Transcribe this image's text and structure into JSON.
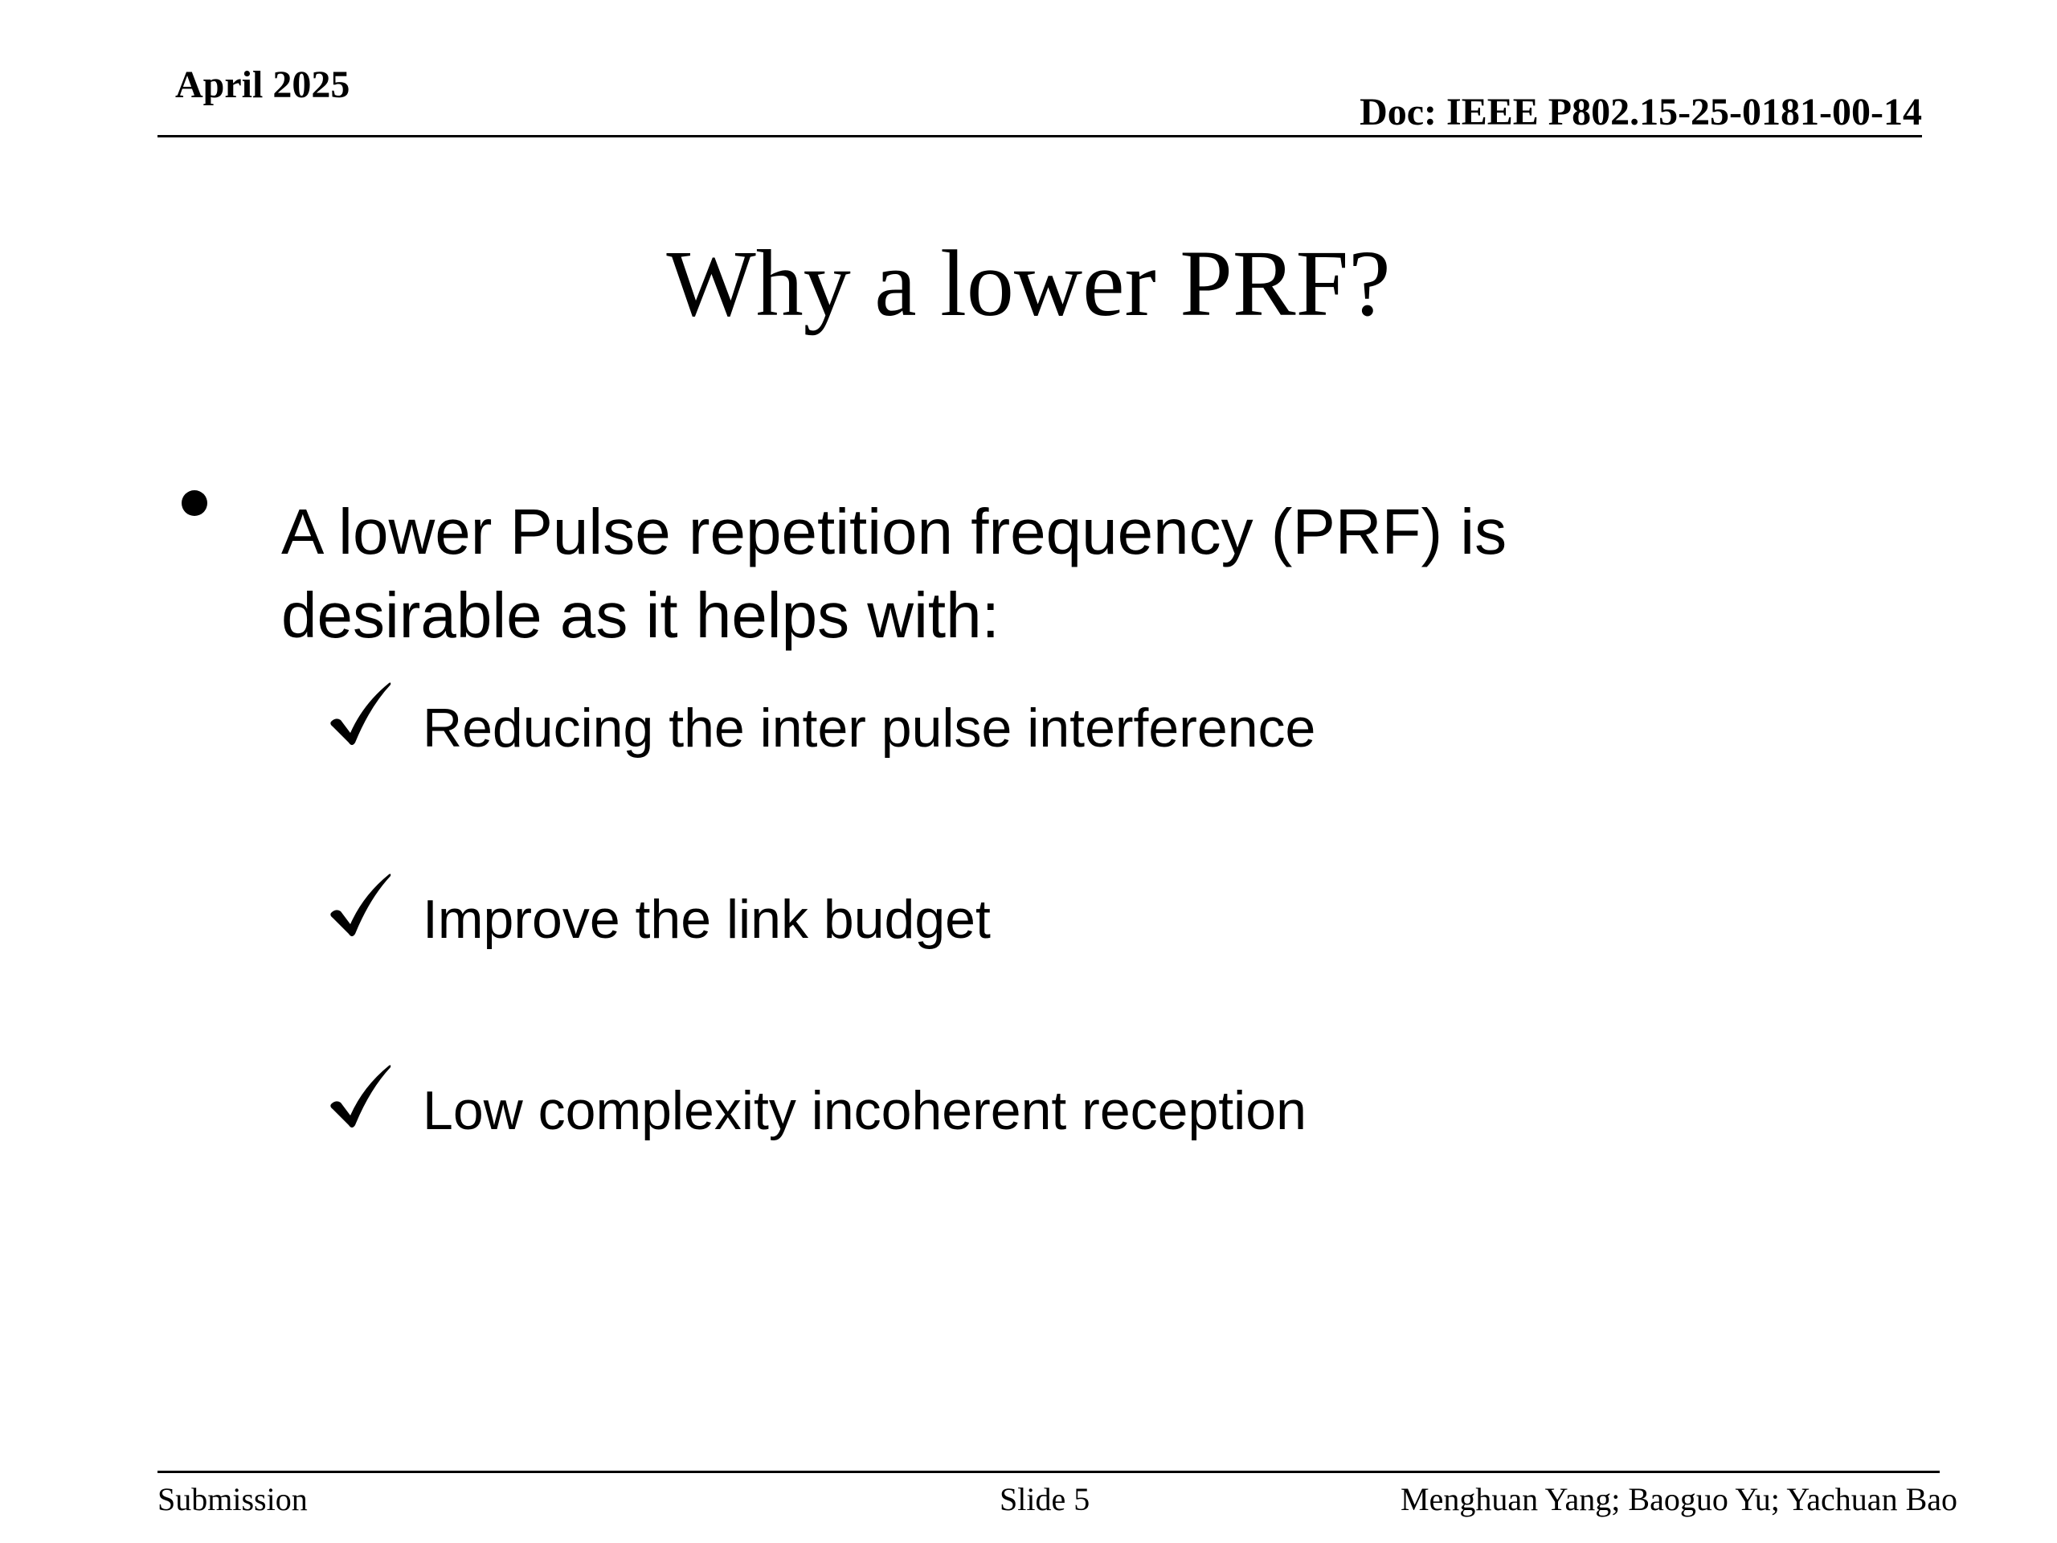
{
  "header": {
    "date": "April 2025",
    "doc_id": "Doc: IEEE P802.15-25-0181-00-14"
  },
  "slide": {
    "title": "Why a lower PRF?",
    "bullet": {
      "line1": "A lower Pulse repetition frequency (PRF) is",
      "line2": "desirable as it helps with:"
    },
    "checks": [
      {
        "text": "Reducing the inter pulse interference",
        "icon": "checkmark-icon"
      },
      {
        "text": "Improve the link budget",
        "icon": "checkmark-icon"
      },
      {
        "text": "Low complexity incoherent reception",
        "icon": "checkmark-icon"
      }
    ]
  },
  "footer": {
    "left": "Submission",
    "center": "Slide 5",
    "right": "Menghuan Yang; Baoguo Yu; Yachuan Bao"
  }
}
